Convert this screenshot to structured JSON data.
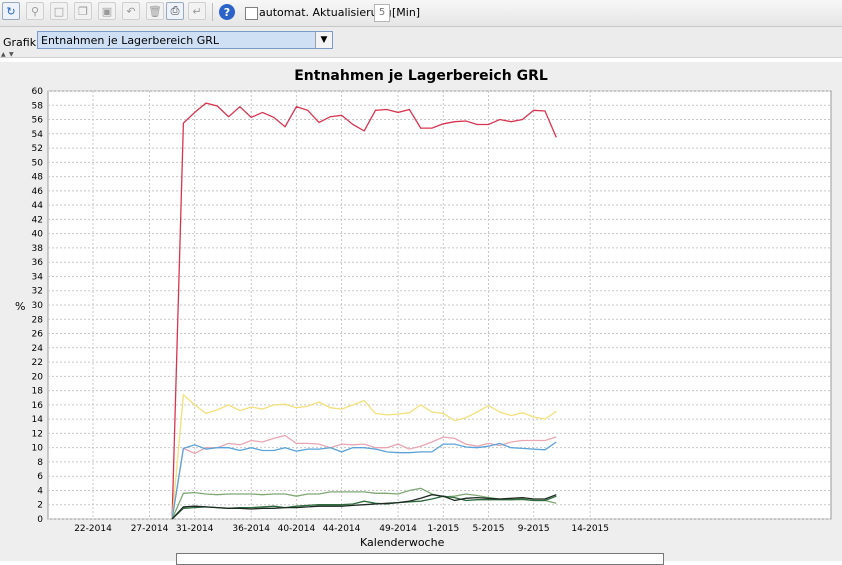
{
  "toolbar": {
    "autoupdate_label": "automat. Aktualisierung",
    "interval_value": "5",
    "interval_unit": "[Min]",
    "help_label": "?"
  },
  "grafik": {
    "label": "Grafik",
    "selected": "Entnahmen je Lagerbereich GRL"
  },
  "chart_data": {
    "type": "line",
    "title": "Entnahmen je Lagerbereich GRL",
    "xlabel": "Kalenderwoche",
    "ylabel": "%",
    "ylim": [
      0,
      60
    ],
    "yticks": [
      0,
      2,
      4,
      6,
      8,
      10,
      12,
      14,
      16,
      18,
      20,
      22,
      24,
      26,
      28,
      30,
      32,
      34,
      36,
      38,
      40,
      42,
      44,
      46,
      48,
      50,
      52,
      54,
      56,
      58,
      60
    ],
    "xticks": [
      "22-2014",
      "27-2014",
      "31-2014",
      "36-2014",
      "40-2014",
      "44-2014",
      "49-2014",
      "1-2015",
      "5-2015",
      "9-2015",
      "14-2015"
    ],
    "grid": true,
    "x_week_start": "29-2014",
    "series": [
      {
        "color": "#d9344f",
        "values": [
          0,
          55.5,
          57,
          58.3,
          57.9,
          56.4,
          57.8,
          56.3,
          57,
          56.3,
          55,
          57.8,
          57.3,
          55.6,
          56.4,
          56.6,
          55.3,
          54.4,
          57.3,
          57.4,
          57,
          57.4,
          54.8,
          54.8,
          55.4,
          55.7,
          55.8,
          55.3,
          55.3,
          56,
          55.7,
          56,
          57.3,
          57.2,
          53.5
        ]
      },
      {
        "color": "#f2e07a",
        "values": [
          0,
          17.4,
          16,
          14.8,
          15.3,
          16,
          15.2,
          15.7,
          15.4,
          16,
          16.1,
          15.6,
          15.8,
          16.4,
          15.6,
          15.4,
          16,
          16.6,
          14.8,
          14.6,
          14.7,
          14.9,
          16,
          15,
          14.8,
          13.8,
          14.2,
          15,
          15.9,
          15,
          14.5,
          14.9,
          14.3,
          14,
          15.1
        ]
      },
      {
        "color": "#e8a6b2",
        "values": [
          0,
          9.9,
          9.2,
          10,
          10,
          10.6,
          10.4,
          11,
          10.8,
          11.3,
          11.7,
          10.6,
          10.6,
          10.5,
          10,
          10.5,
          10.4,
          10.5,
          10,
          10,
          10.5,
          9.8,
          10.2,
          10.8,
          11.5,
          11.3,
          10.5,
          10.2,
          10.6,
          10.3,
          10.8,
          11,
          11,
          11,
          11.5
        ]
      },
      {
        "color": "#5ba3d9",
        "values": [
          0,
          9.9,
          10.4,
          9.8,
          10,
          10,
          9.6,
          10,
          9.6,
          9.6,
          10,
          9.5,
          9.8,
          9.8,
          10,
          9.4,
          10,
          10,
          9.8,
          9.4,
          9.3,
          9.3,
          9.4,
          9.4,
          10.5,
          10.5,
          10.1,
          10,
          10.2,
          10.6,
          10,
          9.9,
          9.8,
          9.7,
          10.8
        ]
      },
      {
        "color": "#7fa874",
        "values": [
          0,
          3.6,
          3.7,
          3.5,
          3.4,
          3.5,
          3.5,
          3.5,
          3.4,
          3.5,
          3.5,
          3.2,
          3.5,
          3.5,
          3.8,
          3.8,
          3.8,
          3.8,
          3.6,
          3.6,
          3.5,
          4,
          4.3,
          3.5,
          3.1,
          3.2,
          3.5,
          3.3,
          3,
          2.8,
          2.7,
          2.7,
          2.6,
          2.6,
          2.2
        ]
      },
      {
        "color": "#2e6b3c",
        "values": [
          0,
          1.5,
          1.6,
          1.7,
          1.6,
          1.5,
          1.6,
          1.6,
          1.7,
          1.8,
          1.6,
          1.8,
          1.9,
          2,
          2,
          2,
          2.1,
          2.5,
          2.2,
          2.1,
          2.3,
          2.4,
          2.5,
          2.8,
          3.2,
          3,
          2.6,
          2.7,
          2.7,
          2.7,
          2.7,
          2.8,
          2.6,
          2.6,
          3.2
        ]
      },
      {
        "color": "#1d2a22",
        "values": [
          0,
          1.7,
          1.8,
          1.7,
          1.6,
          1.5,
          1.5,
          1.4,
          1.5,
          1.5,
          1.6,
          1.6,
          1.7,
          1.8,
          1.8,
          1.8,
          1.9,
          2,
          2.1,
          2.2,
          2.3,
          2.5,
          2.9,
          3.4,
          3.2,
          2.6,
          2.9,
          3,
          2.9,
          2.8,
          2.9,
          3,
          2.8,
          2.8,
          3.4
        ]
      }
    ]
  }
}
